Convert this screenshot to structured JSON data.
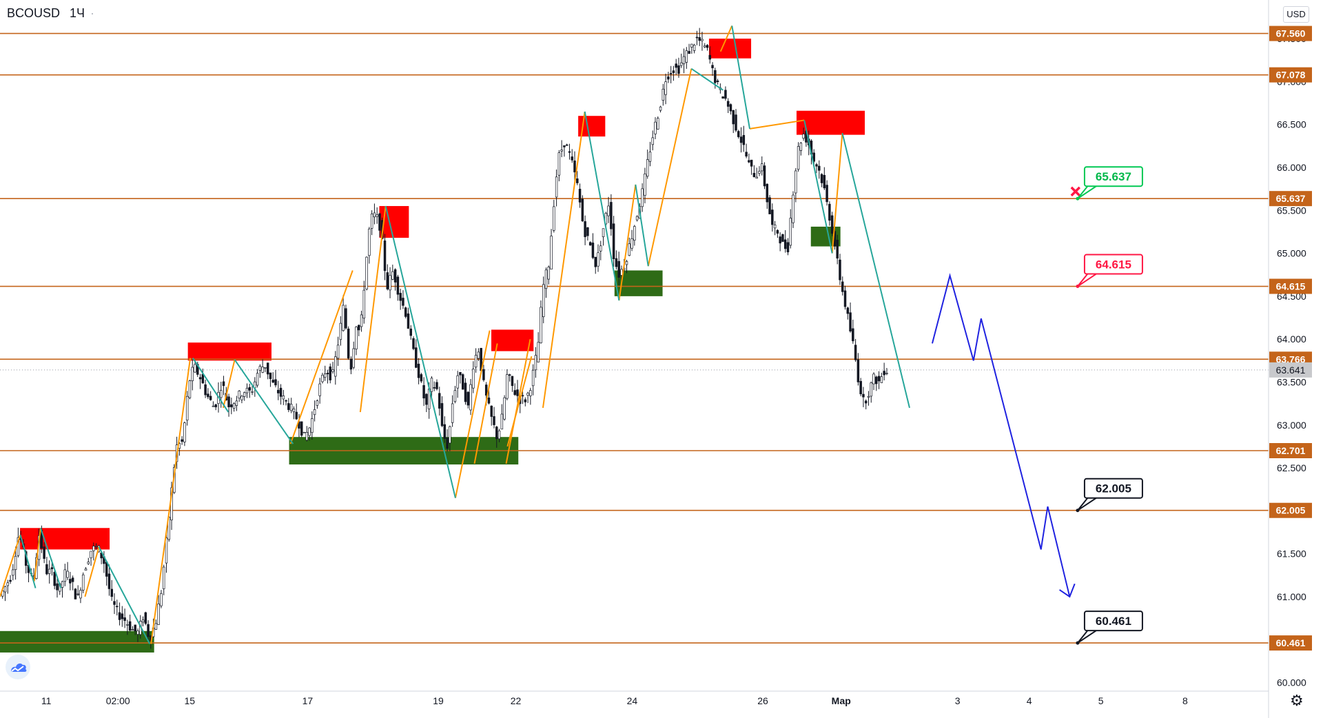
{
  "header": {
    "symbol": "BCOUSD",
    "timeframe": "1Ч",
    "dot": "·"
  },
  "currency_label": "USD",
  "icons": {
    "logo": "tradingview-cloud-icon",
    "settings": "gear-icon",
    "stop": "cross-icon"
  },
  "colors": {
    "level_line": "#c4641a",
    "supply_zone": "#ff0000",
    "demand_zone": "#2e6b16",
    "wave_up": "#ff9800",
    "wave_down": "#26a69a",
    "forecast": "#1f22e0",
    "candle": "#131722",
    "label_green": "#00c853",
    "label_red": "#ff1744",
    "label_black": "#131722",
    "current_price_bg": "#c8c9cc"
  },
  "chart_data": {
    "type": "candlestick",
    "symbol": "BCOUSD",
    "timeframe": "1Ч",
    "currency": "USD",
    "ylim": [
      59.9,
      67.95
    ],
    "y_ticks": [
      "60.000",
      "60.500",
      "61.000",
      "61.500",
      "62.000",
      "62.500",
      "63.000",
      "63.500",
      "64.000",
      "64.500",
      "65.000",
      "65.500",
      "66.000",
      "66.500",
      "67.000",
      "67.500"
    ],
    "x_ticks": [
      {
        "label": "11",
        "pos": 0.0365
      },
      {
        "label": "02:00",
        "pos": 0.093
      },
      {
        "label": "15",
        "pos": 0.1495
      },
      {
        "label": "17",
        "pos": 0.2425
      },
      {
        "label": "19",
        "pos": 0.3455
      },
      {
        "label": "22",
        "pos": 0.4066
      },
      {
        "label": "24",
        "pos": 0.4983
      },
      {
        "label": "26",
        "pos": 0.6013
      },
      {
        "label": "Мар",
        "pos": 0.6631
      },
      {
        "label": "3",
        "pos": 0.7548
      },
      {
        "label": "4",
        "pos": 0.8113
      },
      {
        "label": "5",
        "pos": 0.8678
      },
      {
        "label": "8",
        "pos": 0.9342
      }
    ],
    "levels": [
      "67.560",
      "67.078",
      "65.637",
      "64.615",
      "63.766",
      "62.701",
      "62.005",
      "60.461"
    ],
    "current_price": "63.641",
    "callouts": [
      {
        "value": "65.637",
        "style": "green"
      },
      {
        "value": "64.615",
        "style": "red"
      },
      {
        "value": "62.005",
        "style": "black"
      },
      {
        "value": "60.461",
        "style": "black"
      }
    ],
    "price_path": [
      [
        0.0,
        60.98
      ],
      [
        0.01,
        61.25
      ],
      [
        0.016,
        61.75
      ],
      [
        0.022,
        61.35
      ],
      [
        0.027,
        61.18
      ],
      [
        0.032,
        61.75
      ],
      [
        0.037,
        61.3
      ],
      [
        0.042,
        61.28
      ],
      [
        0.047,
        61.05
      ],
      [
        0.053,
        61.3
      ],
      [
        0.058,
        61.15
      ],
      [
        0.062,
        60.95
      ],
      [
        0.067,
        61.3
      ],
      [
        0.073,
        61.55
      ],
      [
        0.078,
        61.58
      ],
      [
        0.083,
        61.4
      ],
      [
        0.089,
        60.95
      ],
      [
        0.094,
        60.8
      ],
      [
        0.1,
        60.72
      ],
      [
        0.105,
        60.62
      ],
      [
        0.11,
        60.58
      ],
      [
        0.114,
        60.78
      ],
      [
        0.119,
        60.5
      ],
      [
        0.124,
        60.72
      ],
      [
        0.128,
        61.05
      ],
      [
        0.132,
        61.6
      ],
      [
        0.136,
        62.2
      ],
      [
        0.14,
        62.75
      ],
      [
        0.145,
        62.8
      ],
      [
        0.15,
        63.5
      ],
      [
        0.154,
        63.68
      ],
      [
        0.159,
        63.55
      ],
      [
        0.164,
        63.35
      ],
      [
        0.17,
        63.2
      ],
      [
        0.176,
        63.5
      ],
      [
        0.181,
        63.22
      ],
      [
        0.187,
        63.3
      ],
      [
        0.193,
        63.4
      ],
      [
        0.199,
        63.38
      ],
      [
        0.205,
        63.65
      ],
      [
        0.21,
        63.7
      ],
      [
        0.215,
        63.5
      ],
      [
        0.222,
        63.35
      ],
      [
        0.23,
        63.2
      ],
      [
        0.236,
        63.05
      ],
      [
        0.241,
        62.85
      ],
      [
        0.246,
        63.0
      ],
      [
        0.252,
        63.4
      ],
      [
        0.258,
        63.65
      ],
      [
        0.263,
        63.55
      ],
      [
        0.268,
        64.0
      ],
      [
        0.272,
        64.4
      ],
      [
        0.277,
        63.6
      ],
      [
        0.282,
        64.2
      ],
      [
        0.285,
        64.05
      ],
      [
        0.289,
        64.8
      ],
      [
        0.293,
        65.4
      ],
      [
        0.297,
        65.45
      ],
      [
        0.301,
        65.3
      ],
      [
        0.306,
        64.6
      ],
      [
        0.311,
        64.8
      ],
      [
        0.316,
        64.5
      ],
      [
        0.321,
        64.3
      ],
      [
        0.326,
        63.9
      ],
      [
        0.331,
        63.6
      ],
      [
        0.337,
        63.2
      ],
      [
        0.341,
        63.5
      ],
      [
        0.346,
        63.4
      ],
      [
        0.35,
        62.9
      ],
      [
        0.354,
        62.75
      ],
      [
        0.358,
        63.3
      ],
      [
        0.362,
        63.6
      ],
      [
        0.366,
        63.45
      ],
      [
        0.37,
        63.2
      ],
      [
        0.374,
        63.7
      ],
      [
        0.378,
        63.9
      ],
      [
        0.383,
        63.4
      ],
      [
        0.388,
        63.1
      ],
      [
        0.393,
        62.85
      ],
      [
        0.397,
        63.1
      ],
      [
        0.401,
        63.6
      ],
      [
        0.406,
        63.4
      ],
      [
        0.411,
        63.3
      ],
      [
        0.416,
        63.3
      ],
      [
        0.42,
        63.5
      ],
      [
        0.425,
        63.9
      ],
      [
        0.429,
        64.6
      ],
      [
        0.434,
        64.9
      ],
      [
        0.437,
        65.5
      ],
      [
        0.441,
        66.1
      ],
      [
        0.446,
        66.3
      ],
      [
        0.451,
        66.1
      ],
      [
        0.456,
        65.8
      ],
      [
        0.461,
        65.3
      ],
      [
        0.466,
        65.1
      ],
      [
        0.471,
        64.85
      ],
      [
        0.476,
        65.25
      ],
      [
        0.481,
        65.6
      ],
      [
        0.485,
        64.95
      ],
      [
        0.489,
        64.75
      ],
      [
        0.494,
        64.9
      ],
      [
        0.499,
        65.2
      ],
      [
        0.504,
        65.5
      ],
      [
        0.508,
        65.75
      ],
      [
        0.512,
        66.1
      ],
      [
        0.516,
        66.4
      ],
      [
        0.521,
        66.7
      ],
      [
        0.526,
        67.05
      ],
      [
        0.531,
        67.15
      ],
      [
        0.536,
        67.15
      ],
      [
        0.541,
        67.3
      ],
      [
        0.546,
        67.4
      ],
      [
        0.55,
        67.5
      ],
      [
        0.554,
        67.45
      ],
      [
        0.559,
        67.35
      ],
      [
        0.563,
        67.1
      ],
      [
        0.568,
        66.9
      ],
      [
        0.573,
        66.8
      ],
      [
        0.578,
        66.6
      ],
      [
        0.583,
        66.4
      ],
      [
        0.587,
        66.25
      ],
      [
        0.592,
        66.0
      ],
      [
        0.597,
        65.9
      ],
      [
        0.601,
        66.05
      ],
      [
        0.606,
        65.6
      ],
      [
        0.61,
        65.3
      ],
      [
        0.614,
        65.25
      ],
      [
        0.618,
        65.1
      ],
      [
        0.622,
        65.05
      ],
      [
        0.626,
        65.7
      ],
      [
        0.63,
        66.2
      ],
      [
        0.634,
        66.4
      ],
      [
        0.638,
        66.3
      ],
      [
        0.642,
        66.1
      ],
      [
        0.646,
        66.0
      ],
      [
        0.65,
        65.8
      ],
      [
        0.654,
        65.5
      ],
      [
        0.658,
        65.2
      ],
      [
        0.662,
        64.8
      ],
      [
        0.666,
        64.5
      ],
      [
        0.67,
        64.2
      ],
      [
        0.674,
        63.9
      ],
      [
        0.678,
        63.5
      ],
      [
        0.682,
        63.25
      ],
      [
        0.686,
        63.4
      ],
      [
        0.69,
        63.55
      ],
      [
        0.694,
        63.5
      ],
      [
        0.698,
        63.64
      ]
    ],
    "supply_zones": [
      {
        "x0": 0.0158,
        "x1": 0.0864,
        "y0": 61.55,
        "y1": 61.8
      },
      {
        "x0": 0.1481,
        "x1": 0.214,
        "y0": 63.75,
        "y1": 63.96
      },
      {
        "x0": 0.299,
        "x1": 0.3223,
        "y0": 65.18,
        "y1": 65.55
      },
      {
        "x0": 0.3873,
        "x1": 0.4206,
        "y0": 63.86,
        "y1": 64.11
      },
      {
        "x0": 0.4558,
        "x1": 0.4771,
        "y0": 66.36,
        "y1": 66.6
      },
      {
        "x0": 0.5589,
        "x1": 0.5921,
        "y0": 67.27,
        "y1": 67.5
      },
      {
        "x0": 0.6279,
        "x1": 0.6817,
        "y0": 66.38,
        "y1": 66.66
      }
    ],
    "demand_zones": [
      {
        "x0": 0.0,
        "x1": 0.1215,
        "y0": 60.35,
        "y1": 60.6
      },
      {
        "x0": 0.2279,
        "x1": 0.4086,
        "y0": 62.54,
        "y1": 62.86
      },
      {
        "x0": 0.4844,
        "x1": 0.5223,
        "y0": 64.5,
        "y1": 64.8
      },
      {
        "x0": 0.6392,
        "x1": 0.6625,
        "y0": 65.08,
        "y1": 65.31
      }
    ],
    "wave_up": [
      [
        [
          0.0,
          61.0
        ],
        [
          0.016,
          61.72
        ]
      ],
      [
        [
          0.027,
          61.18
        ],
        [
          0.032,
          61.8
        ]
      ],
      [
        [
          0.067,
          61.0
        ],
        [
          0.078,
          61.58
        ]
      ],
      [
        [
          0.119,
          60.45
        ],
        [
          0.15,
          63.78
        ]
      ],
      [
        [
          0.176,
          63.2
        ],
        [
          0.185,
          63.76
        ]
      ],
      [
        [
          0.229,
          62.78
        ],
        [
          0.278,
          64.8
        ]
      ],
      [
        [
          0.284,
          63.15
        ],
        [
          0.304,
          65.55
        ]
      ],
      [
        [
          0.359,
          62.15
        ],
        [
          0.386,
          64.1
        ]
      ],
      [
        [
          0.374,
          62.55
        ],
        [
          0.392,
          63.95
        ]
      ],
      [
        [
          0.399,
          62.55
        ],
        [
          0.418,
          64.0
        ]
      ],
      [
        [
          0.4,
          62.75
        ],
        [
          0.419,
          63.8
        ]
      ],
      [
        [
          0.428,
          63.2
        ],
        [
          0.461,
          66.65
        ]
      ],
      [
        [
          0.488,
          64.45
        ],
        [
          0.501,
          65.8
        ]
      ],
      [
        [
          0.511,
          64.85
        ],
        [
          0.545,
          67.15
        ]
      ],
      [
        [
          0.568,
          67.35
        ],
        [
          0.577,
          67.65
        ]
      ],
      [
        [
          0.591,
          66.45
        ],
        [
          0.634,
          66.55
        ]
      ],
      [
        [
          0.656,
          65.0
        ],
        [
          0.664,
          66.4
        ]
      ]
    ],
    "wave_down": [
      [
        [
          0.016,
          61.72
        ],
        [
          0.028,
          61.1
        ]
      ],
      [
        [
          0.032,
          61.8
        ],
        [
          0.048,
          61.1
        ]
      ],
      [
        [
          0.078,
          61.58
        ],
        [
          0.118,
          60.45
        ]
      ],
      [
        [
          0.152,
          63.78
        ],
        [
          0.18,
          63.15
        ]
      ],
      [
        [
          0.185,
          63.76
        ],
        [
          0.231,
          62.78
        ]
      ],
      [
        [
          0.304,
          65.55
        ],
        [
          0.359,
          62.15
        ]
      ],
      [
        [
          0.461,
          66.65
        ],
        [
          0.488,
          64.45
        ]
      ],
      [
        [
          0.501,
          65.8
        ],
        [
          0.511,
          64.85
        ]
      ],
      [
        [
          0.545,
          67.15
        ],
        [
          0.57,
          66.9
        ]
      ],
      [
        [
          0.577,
          67.65
        ],
        [
          0.591,
          66.45
        ]
      ],
      [
        [
          0.634,
          66.55
        ],
        [
          0.656,
          65.0
        ]
      ],
      [
        [
          0.664,
          66.4
        ],
        [
          0.717,
          63.2
        ]
      ]
    ],
    "forecast": [
      [
        0.7349,
        63.95
      ],
      [
        0.7488,
        64.74
      ],
      [
        0.7674,
        63.75
      ],
      [
        0.7734,
        64.24
      ],
      [
        0.8206,
        61.55
      ],
      [
        0.8259,
        62.05
      ],
      [
        0.8432,
        61.0
      ]
    ],
    "forecast_arrowhead": [
      [
        0.8352,
        61.08
      ],
      [
        0.8432,
        61.0
      ],
      [
        0.8472,
        61.15
      ]
    ],
    "stop_marker": {
      "x": 0.8478,
      "y": 65.72
    }
  }
}
